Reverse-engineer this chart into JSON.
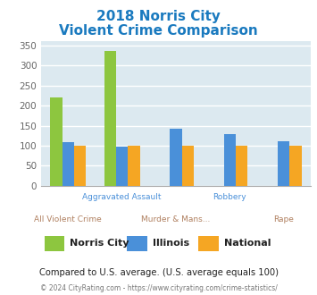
{
  "title_line1": "2018 Norris City",
  "title_line2": "Violent Crime Comparison",
  "categories": [
    "All Violent Crime",
    "Aggravated Assault",
    "Murder & Mans...",
    "Robbery",
    "Rape"
  ],
  "norris_city": [
    220,
    336,
    0,
    0,
    0
  ],
  "illinois": [
    108,
    97,
    142,
    130,
    110
  ],
  "national": [
    100,
    100,
    100,
    100,
    100
  ],
  "norris_city_color": "#8dc63f",
  "illinois_color": "#4a90d9",
  "national_color": "#f5a623",
  "title_color": "#1a7abf",
  "plot_bg_color": "#dce9f0",
  "fig_bg_color": "#ffffff",
  "ylim": [
    0,
    360
  ],
  "yticks": [
    0,
    50,
    100,
    150,
    200,
    250,
    300,
    350
  ],
  "note_text": "Compared to U.S. average. (U.S. average equals 100)",
  "footer_text": "© 2024 CityRating.com - https://www.cityrating.com/crime-statistics/",
  "footer_link": "https://www.cityrating.com/crime-statistics/",
  "legend_labels": [
    "Norris City",
    "Illinois",
    "National"
  ],
  "bar_width": 0.22,
  "label_top_row": [
    "",
    "Aggravated Assault",
    "",
    "Robbery",
    ""
  ],
  "label_bot_row": [
    "All Violent Crime",
    "",
    "Murder & Mans...",
    "",
    "Rape"
  ],
  "label_top_color": "#4a90d9",
  "label_bot_color": "#b08060"
}
